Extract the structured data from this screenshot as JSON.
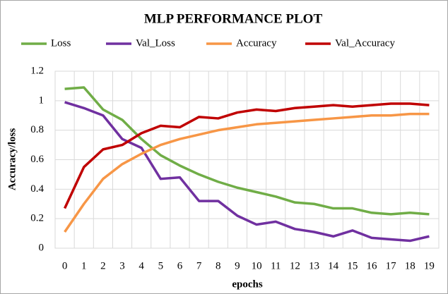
{
  "chart_data": {
    "type": "line",
    "title": "MLP PERFORMANCE PLOT",
    "x_label": "epochs",
    "y_label": "Accuracy/loss",
    "categories": [
      0,
      1,
      2,
      3,
      4,
      5,
      6,
      7,
      8,
      9,
      10,
      11,
      12,
      13,
      14,
      15,
      16,
      17,
      18,
      19
    ],
    "series": [
      {
        "name": "Loss",
        "color": "#70ad47",
        "values": [
          1.08,
          1.09,
          0.94,
          0.87,
          0.74,
          0.63,
          0.56,
          0.5,
          0.45,
          0.41,
          0.38,
          0.35,
          0.31,
          0.3,
          0.27,
          0.27,
          0.24,
          0.23,
          0.24,
          0.23
        ]
      },
      {
        "name": "Val_Loss",
        "color": "#7030a0",
        "values": [
          0.99,
          0.95,
          0.9,
          0.74,
          0.68,
          0.47,
          0.48,
          0.32,
          0.32,
          0.22,
          0.16,
          0.18,
          0.13,
          0.11,
          0.08,
          0.12,
          0.07,
          0.06,
          0.05,
          0.08
        ]
      },
      {
        "name": "Accuracy",
        "color": "#f79646",
        "values": [
          0.11,
          0.3,
          0.47,
          0.57,
          0.64,
          0.7,
          0.74,
          0.77,
          0.8,
          0.82,
          0.84,
          0.85,
          0.86,
          0.87,
          0.88,
          0.89,
          0.9,
          0.9,
          0.91,
          0.91
        ]
      },
      {
        "name": "Val_Accuracy",
        "color": "#c00000",
        "values": [
          0.27,
          0.55,
          0.67,
          0.7,
          0.78,
          0.83,
          0.82,
          0.89,
          0.88,
          0.92,
          0.94,
          0.93,
          0.95,
          0.96,
          0.97,
          0.96,
          0.97,
          0.98,
          0.98,
          0.97
        ]
      }
    ],
    "ylim": [
      0,
      1.2
    ],
    "yticks": [
      0,
      0.2,
      0.4,
      0.6,
      0.8,
      1,
      1.2
    ],
    "grid": true,
    "legend": "top"
  }
}
